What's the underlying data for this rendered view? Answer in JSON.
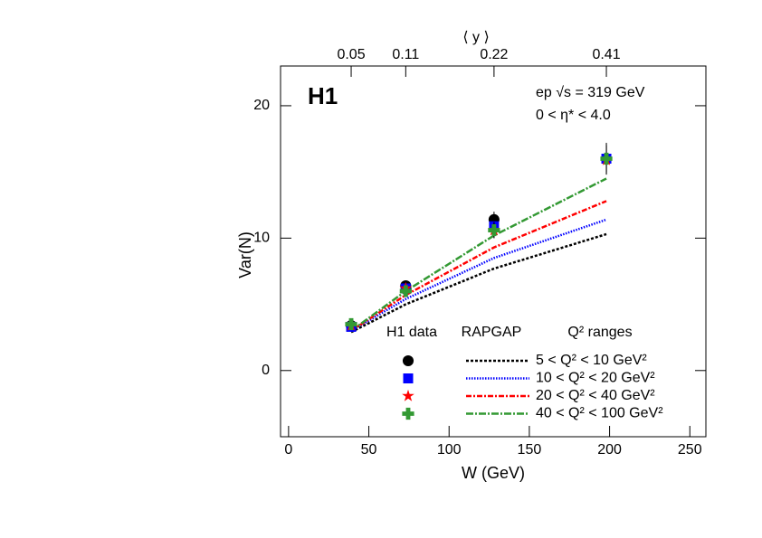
{
  "chart_data": {
    "type": "scatter",
    "annotations": [
      "H1",
      "ep √s = 319 GeV",
      "0 < η* < 4.0"
    ],
    "xlabel": "W (GeV)",
    "ylabel": "Var(N)",
    "x2label": "⟨ y ⟩",
    "x2ticks": [
      0.05,
      0.11,
      0.22,
      0.41
    ],
    "legend_headers": [
      "H1 data",
      "RAPGAP",
      "Q² ranges"
    ],
    "x": [
      39,
      73,
      128,
      198
    ],
    "xlim": [
      -5,
      260
    ],
    "xticks": [
      0,
      50,
      100,
      150,
      200,
      250
    ],
    "ylim": [
      -5,
      23
    ],
    "yticks": [
      0,
      10,
      20
    ],
    "series": [
      {
        "name": "5 < Q² < 10 GeV²",
        "color": "#000000",
        "marker": "circle",
        "values": [
          3.4,
          6.4,
          11.4,
          16.0
        ],
        "errors": [
          0.2,
          0.3,
          0.6,
          1.2
        ],
        "rapgap": [
          2.9,
          5.0,
          7.7,
          10.3
        ],
        "rapgap_dash": "3,2"
      },
      {
        "name": "10 < Q² < 20 GeV²",
        "color": "#0000ff",
        "marker": "square",
        "values": [
          3.3,
          6.2,
          10.9,
          16.0
        ],
        "errors": [
          0.2,
          0.3,
          0.6,
          1.1
        ],
        "rapgap": [
          3.0,
          5.4,
          8.5,
          11.4
        ],
        "rapgap_dash": "1.5,1.5"
      },
      {
        "name": "20 < Q² < 40 GeV²",
        "color": "#ff0000",
        "marker": "star",
        "values": [
          3.4,
          6.2,
          10.6,
          15.9
        ],
        "errors": [
          0.2,
          0.3,
          0.6,
          1.1
        ],
        "rapgap": [
          3.0,
          5.7,
          9.3,
          12.8
        ],
        "rapgap_dash": "6,2,2,2"
      },
      {
        "name": "40 < Q² < 100 GeV²",
        "color": "#339933",
        "marker": "cross",
        "values": [
          3.5,
          6.0,
          10.6,
          16.0
        ],
        "errors": [
          0.2,
          0.3,
          0.6,
          1.0
        ],
        "rapgap": [
          3.0,
          6.0,
          10.2,
          14.5
        ],
        "rapgap_dash": "8,2,2,2"
      }
    ]
  }
}
